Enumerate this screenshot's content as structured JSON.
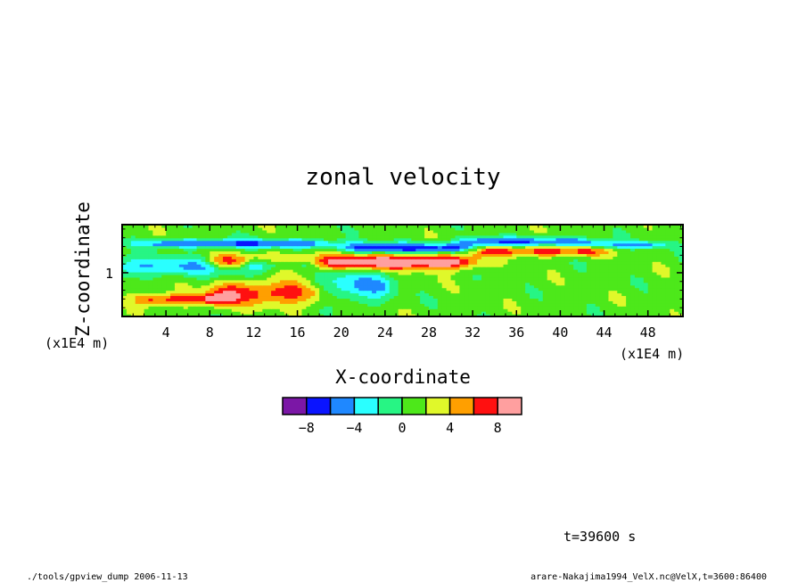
{
  "chart_data": {
    "type": "heatmap",
    "title": "zonal velocity",
    "xlabel": "X-coordinate",
    "ylabel": "Z-coordinate",
    "x_unit_label": "(x1E4 m)",
    "y_unit_label": "(x1E4 m)",
    "xlim": [
      0,
      51.2
    ],
    "ylim": [
      0,
      2.1
    ],
    "x_ticks": [
      4,
      8,
      12,
      16,
      20,
      24,
      28,
      32,
      36,
      40,
      44,
      48
    ],
    "x_tick_labels": [
      "4",
      "8",
      "12",
      "16",
      "20",
      "24",
      "28",
      "32",
      "36",
      "40",
      "44",
      "48"
    ],
    "y_ticks": [
      1
    ],
    "y_tick_labels": [
      "1"
    ],
    "colorbar": {
      "levels": [
        -10,
        -8,
        -6,
        -4,
        -2,
        0,
        2,
        4,
        6,
        8,
        10
      ],
      "tick_values": [
        -8,
        -4,
        0,
        4,
        8
      ],
      "tick_labels": [
        "−8",
        "−4",
        "0",
        "4",
        "8"
      ],
      "colors": [
        "#7b17a6",
        "#0a14ff",
        "#1f88ff",
        "#2affff",
        "#27f584",
        "#4de81a",
        "#e0f82a",
        "#ff9f00",
        "#ff1010",
        "#ff9f9f"
      ]
    },
    "background_value": 1,
    "features": [
      {
        "name": "upper negative jet",
        "x_range": [
          3,
          18
        ],
        "z_center": 1.68,
        "z_halfwidth": 0.07,
        "value": -7
      },
      {
        "name": "upper negative jet",
        "x_range": [
          21,
          31
        ],
        "z_center": 1.58,
        "z_halfwidth": 0.08,
        "value": -8
      },
      {
        "name": "upper negative jet",
        "x_range": [
          32,
          42
        ],
        "z_center": 1.72,
        "z_halfwidth": 0.07,
        "value": -7
      },
      {
        "name": "upper negative jet",
        "x_range": [
          43,
          49
        ],
        "z_center": 1.65,
        "z_halfwidth": 0.06,
        "value": -5
      },
      {
        "name": "positive band",
        "x_range": [
          9,
          17
        ],
        "z_center": 1.25,
        "z_halfwidth": 0.12,
        "value": 9
      },
      {
        "name": "positive band",
        "x_range": [
          19,
          31
        ],
        "z_center": 1.25,
        "z_halfwidth": 0.12,
        "value": 9
      },
      {
        "name": "positive band",
        "x_range": [
          33,
          43
        ],
        "z_center": 1.5,
        "z_halfwidth": 0.08,
        "value": 6
      },
      {
        "name": "negative core",
        "x_range": [
          12,
          17
        ],
        "z_center": 1.22,
        "z_halfwidth": 0.1,
        "value": -9
      },
      {
        "name": "negative region",
        "x_range": [
          0,
          12
        ],
        "z_center": 1.15,
        "z_halfwidth": 0.15,
        "value": -5
      },
      {
        "name": "lower positive region",
        "x_range": [
          9,
          18
        ],
        "z_center": 0.55,
        "z_halfwidth": 0.2,
        "value": 6
      },
      {
        "name": "lower positive region",
        "x_range": [
          2,
          9
        ],
        "z_center": 0.4,
        "z_halfwidth": 0.1,
        "value": 6
      },
      {
        "name": "lower negative region",
        "x_range": [
          18,
          24
        ],
        "z_center": 0.7,
        "z_halfwidth": 0.25,
        "value": -5
      }
    ]
  },
  "annotations": {
    "time": "t=39600 s",
    "footer_left": "./tools/gpview_dump  2006-11-13",
    "footer_right": "arare-Nakajima1994_VelX.nc@VelX,t=3600:86400"
  }
}
